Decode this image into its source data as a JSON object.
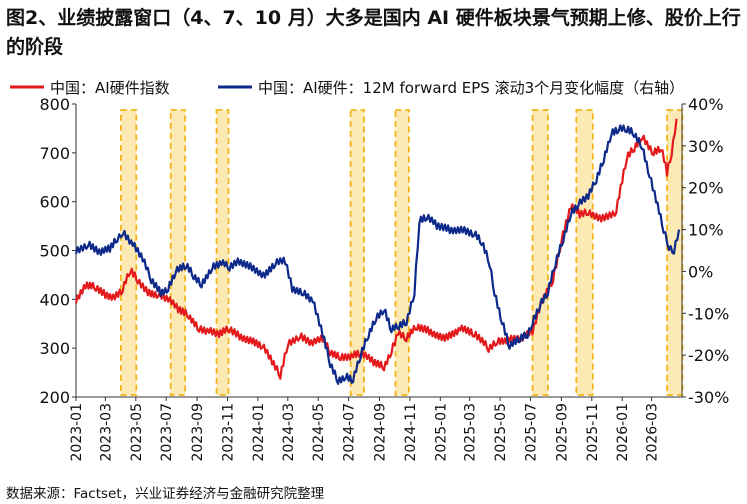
{
  "title": "图2、业绩披露窗口（4、7、10 月）大多是国内 AI 硬件板块景气预期上修、股价上行的阶段",
  "source": "数据来源：Factset，兴业证券经济与金融研究院整理",
  "colors": {
    "index": "#e3191c",
    "eps": "#0d2a8a",
    "window_fill": "#fde9b4",
    "window_border": "#f2b51a"
  },
  "chart_data": {
    "type": "line",
    "legend": [
      "中国：AI硬件指数",
      "中国：AI硬件：12M forward EPS 滚动3个月变化幅度（右轴）"
    ],
    "legend_position": "top",
    "x_ticks": [
      "2023-01",
      "2023-03",
      "2023-05",
      "2023-07",
      "2023-09",
      "2023-11",
      "2024-01",
      "2024-03",
      "2024-05",
      "2024-07",
      "2024-09",
      "2024-11",
      "2025-01",
      "2025-03",
      "2025-05",
      "2025-07",
      "2025-09",
      "2025-11",
      "2026-01",
      "2026-03"
    ],
    "y_left": {
      "min": 200,
      "max": 800,
      "ticks": [
        "200",
        "300",
        "400",
        "500",
        "600",
        "700",
        "800"
      ]
    },
    "y_right": {
      "min": -30,
      "max": 40,
      "ticks": [
        "-30%",
        "-20%",
        "-10%",
        "0%",
        "10%",
        "20%",
        "30%",
        "40%"
      ]
    },
    "highlight_windows": [
      [
        "2023-04-01",
        "2023-05-02"
      ],
      [
        "2023-07-10",
        "2023-08-08"
      ],
      [
        "2023-10-10",
        "2023-11-03"
      ],
      [
        "2024-07-05",
        "2024-08-01"
      ],
      [
        "2024-10-03",
        "2024-10-30"
      ],
      [
        "2025-07-05",
        "2025-08-05"
      ],
      [
        "2025-10-01",
        "2025-11-03"
      ],
      [
        "2026-04-01",
        "2026-05-02"
      ]
    ],
    "series": [
      {
        "name": "中国：AI硬件指数",
        "axis": "left",
        "color": "#e3191c",
        "points": [
          [
            "2023-01-01",
            395
          ],
          [
            "2023-01-20",
            428
          ],
          [
            "2023-02-10",
            425
          ],
          [
            "2023-03-01",
            410
          ],
          [
            "2023-03-20",
            405
          ],
          [
            "2023-04-05",
            420
          ],
          [
            "2023-04-20",
            460
          ],
          [
            "2023-05-05",
            440
          ],
          [
            "2023-05-25",
            415
          ],
          [
            "2023-06-15",
            410
          ],
          [
            "2023-07-05",
            400
          ],
          [
            "2023-07-25",
            380
          ],
          [
            "2023-08-15",
            368
          ],
          [
            "2023-09-05",
            340
          ],
          [
            "2023-09-25",
            335
          ],
          [
            "2023-10-15",
            328
          ],
          [
            "2023-11-05",
            340
          ],
          [
            "2023-11-25",
            325
          ],
          [
            "2023-12-20",
            315
          ],
          [
            "2024-01-10",
            305
          ],
          [
            "2024-02-05",
            262
          ],
          [
            "2024-02-15",
            245
          ],
          [
            "2024-03-01",
            310
          ],
          [
            "2024-03-25",
            325
          ],
          [
            "2024-04-20",
            310
          ],
          [
            "2024-05-10",
            320
          ],
          [
            "2024-05-25",
            293
          ],
          [
            "2024-06-15",
            282
          ],
          [
            "2024-07-10",
            285
          ],
          [
            "2024-07-25",
            290
          ],
          [
            "2024-08-20",
            272
          ],
          [
            "2024-09-10",
            262
          ],
          [
            "2024-09-25",
            295
          ],
          [
            "2024-10-08",
            330
          ],
          [
            "2024-10-25",
            320
          ],
          [
            "2024-11-15",
            345
          ],
          [
            "2024-12-10",
            335
          ],
          [
            "2025-01-10",
            320
          ],
          [
            "2025-02-10",
            340
          ],
          [
            "2025-03-10",
            330
          ],
          [
            "2025-04-08",
            300
          ],
          [
            "2025-04-25",
            315
          ],
          [
            "2025-05-20",
            318
          ],
          [
            "2025-06-15",
            320
          ],
          [
            "2025-07-05",
            335
          ],
          [
            "2025-07-25",
            400
          ],
          [
            "2025-08-15",
            440
          ],
          [
            "2025-09-01",
            520
          ],
          [
            "2025-09-20",
            590
          ],
          [
            "2025-10-08",
            575
          ],
          [
            "2025-10-25",
            580
          ],
          [
            "2025-11-20",
            565
          ],
          [
            "2025-12-20",
            580
          ],
          [
            "2026-01-10",
            690
          ],
          [
            "2026-01-25",
            710
          ],
          [
            "2026-02-10",
            735
          ],
          [
            "2026-03-05",
            700
          ],
          [
            "2026-03-20",
            710
          ],
          [
            "2026-04-01",
            660
          ],
          [
            "2026-04-10",
            700
          ],
          [
            "2026-04-20",
            770
          ]
        ]
      },
      {
        "name": "中国：AI硬件：12M forward EPS 滚动3个月变化幅度（右轴）",
        "axis": "right",
        "color": "#0d2a8a",
        "points": [
          [
            "2023-01-01",
            5
          ],
          [
            "2023-01-25",
            6.5
          ],
          [
            "2023-02-20",
            4.5
          ],
          [
            "2023-03-10",
            5.5
          ],
          [
            "2023-03-25",
            8
          ],
          [
            "2023-04-05",
            9.5
          ],
          [
            "2023-04-25",
            6.5
          ],
          [
            "2023-05-15",
            3
          ],
          [
            "2023-06-01",
            -2
          ],
          [
            "2023-06-20",
            -5
          ],
          [
            "2023-07-05",
            -4
          ],
          [
            "2023-07-20",
            0
          ],
          [
            "2023-08-10",
            1.5
          ],
          [
            "2023-08-25",
            -1
          ],
          [
            "2023-09-10",
            -3
          ],
          [
            "2023-10-01",
            1
          ],
          [
            "2023-10-20",
            2
          ],
          [
            "2023-11-05",
            1
          ],
          [
            "2023-11-25",
            2.5
          ],
          [
            "2023-12-20",
            1
          ],
          [
            "2024-01-15",
            -1
          ],
          [
            "2024-02-05",
            2
          ],
          [
            "2024-02-25",
            2.5
          ],
          [
            "2024-03-10",
            -4
          ],
          [
            "2024-04-01",
            -5
          ],
          [
            "2024-04-20",
            -7
          ],
          [
            "2024-05-10",
            -15
          ],
          [
            "2024-05-25",
            -22
          ],
          [
            "2024-06-10",
            -26
          ],
          [
            "2024-06-25",
            -25
          ],
          [
            "2024-07-10",
            -26
          ],
          [
            "2024-07-25",
            -20
          ],
          [
            "2024-08-10",
            -15
          ],
          [
            "2024-08-25",
            -11
          ],
          [
            "2024-09-10",
            -9
          ],
          [
            "2024-09-25",
            -14
          ],
          [
            "2024-10-10",
            -13
          ],
          [
            "2024-10-25",
            -12
          ],
          [
            "2024-11-10",
            -5
          ],
          [
            "2024-11-20",
            12
          ],
          [
            "2024-12-05",
            13
          ],
          [
            "2024-12-25",
            11
          ],
          [
            "2025-01-20",
            10
          ],
          [
            "2025-02-15",
            10
          ],
          [
            "2025-03-10",
            9
          ],
          [
            "2025-03-25",
            7
          ],
          [
            "2025-04-10",
            2
          ],
          [
            "2025-04-20",
            -5
          ],
          [
            "2025-05-05",
            -12
          ],
          [
            "2025-05-20",
            -18
          ],
          [
            "2025-06-10",
            -16
          ],
          [
            "2025-06-25",
            -15
          ],
          [
            "2025-07-05",
            -12
          ],
          [
            "2025-07-20",
            -8
          ],
          [
            "2025-08-05",
            -5
          ],
          [
            "2025-08-20",
            2
          ],
          [
            "2025-09-05",
            8
          ],
          [
            "2025-09-20",
            14
          ],
          [
            "2025-10-05",
            16
          ],
          [
            "2025-10-25",
            18
          ],
          [
            "2025-11-10",
            22
          ],
          [
            "2025-11-25",
            27
          ],
          [
            "2025-12-10",
            33
          ],
          [
            "2025-12-25",
            34
          ],
          [
            "2026-01-10",
            34
          ],
          [
            "2026-01-25",
            33
          ],
          [
            "2026-02-10",
            30
          ],
          [
            "2026-02-25",
            23
          ],
          [
            "2026-03-10",
            17
          ],
          [
            "2026-03-25",
            10
          ],
          [
            "2026-04-05",
            6
          ],
          [
            "2026-04-15",
            5
          ],
          [
            "2026-04-25",
            10
          ]
        ]
      }
    ]
  }
}
